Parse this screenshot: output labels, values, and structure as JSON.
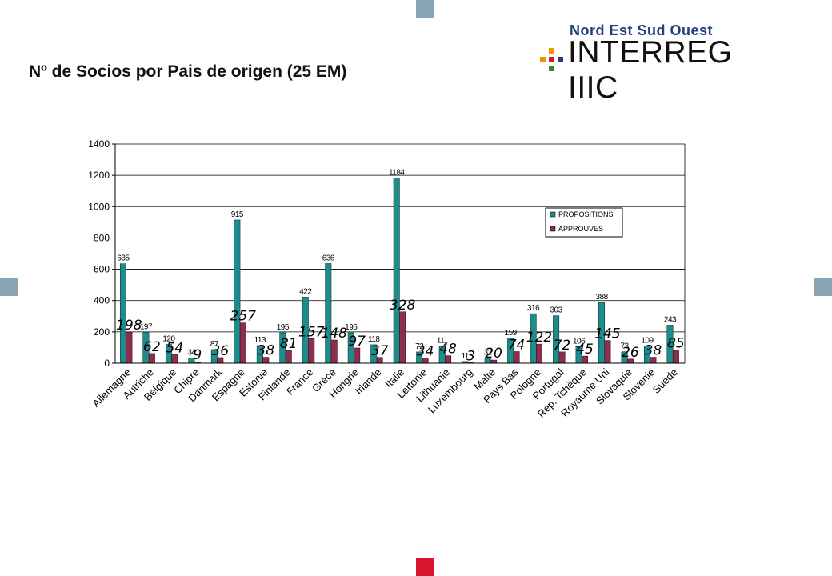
{
  "page": {
    "title": "Nº de Socios por Pais de origen (25 EM)"
  },
  "logo": {
    "top_text": "Nord Est Sud Ouest",
    "main_text": "INTERREG IIIC",
    "mark_icon": "interreg-mosaic-icon",
    "colors": {
      "blue": "#233f80",
      "orange": "#f39200",
      "red": "#d7152c",
      "green": "#2f8c3c"
    }
  },
  "decor": {
    "square_colors": {
      "grey": "#8aa6b4",
      "red": "#d7152c"
    }
  },
  "chart_data": {
    "type": "bar",
    "title": "",
    "xlabel": "",
    "ylabel": "",
    "ylim": [
      0,
      1400
    ],
    "yticks": [
      0,
      200,
      400,
      600,
      800,
      1000,
      1200,
      1400
    ],
    "grid": true,
    "legend_position": "right",
    "categories": [
      "Allemagne",
      "Autriche",
      "Belgique",
      "Chipre",
      "Danmark",
      "Espagne",
      "Estonie",
      "Finlande",
      "France",
      "Grèce",
      "Hongrie",
      "Irlande",
      "Italie",
      "Lettonie",
      "Lithuanie",
      "Luxembourg",
      "Malte",
      "Pays Bas",
      "Pologne",
      "Portugal",
      "Rep. Tchèque",
      "Royaume Uni",
      "Slovaquie",
      "Slovenie",
      "Suède"
    ],
    "series": [
      {
        "name": "PROPOSITIONS",
        "color": "#1e8c8a",
        "values": [
          635,
          197,
          120,
          34,
          87,
          915,
          113,
          195,
          422,
          636,
          195,
          118,
          1184,
          72,
          111,
          11,
          32,
          159,
          316,
          303,
          106,
          388,
          73,
          109,
          243
        ],
        "labels": [
          "635",
          "197",
          "120",
          "34",
          "87",
          "915",
          "113",
          "195",
          "422",
          "636",
          "195",
          "118",
          "1184",
          "72",
          "111",
          "11",
          "32",
          "159",
          "316",
          "303",
          "106",
          "388",
          "73",
          "109",
          "243"
        ]
      },
      {
        "name": "APPROUVES",
        "color": "#8e2d4e",
        "values": [
          198,
          62,
          54,
          9,
          36,
          257,
          38,
          81,
          157,
          148,
          97,
          37,
          328,
          34,
          48,
          3,
          20,
          74,
          122,
          72,
          45,
          145,
          26,
          38,
          85
        ],
        "labels": [
          "198",
          "62",
          "54",
          "9",
          "36",
          "257",
          "38",
          "81",
          "157",
          "148",
          "97",
          "37",
          "328",
          "34",
          "48",
          "3",
          "20",
          "74",
          "122",
          "72",
          "45",
          "145",
          "26",
          "38",
          "85"
        ]
      }
    ]
  }
}
